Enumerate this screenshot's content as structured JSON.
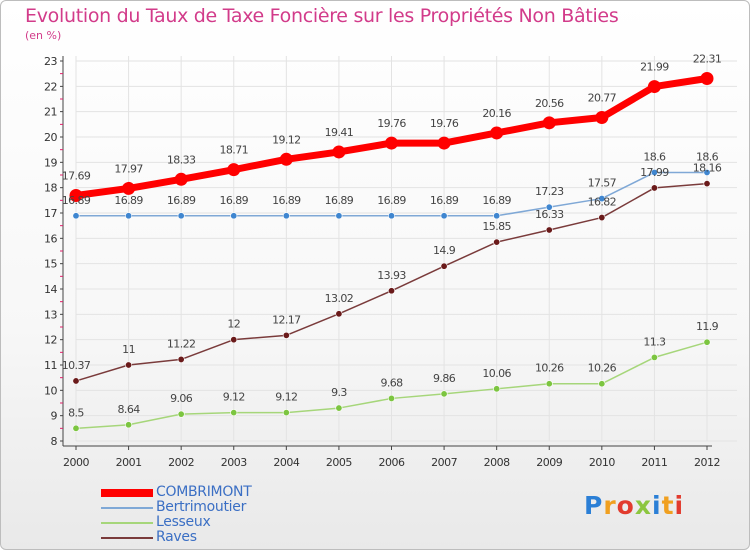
{
  "title": "Evolution du Taux de Taxe Foncière sur les Propriétés Non Bâties",
  "unit_label": "(en %)",
  "logo": {
    "text": "Proxiti",
    "letters": [
      "P",
      "r",
      "o",
      "x",
      "i",
      "t",
      "i"
    ],
    "colors": [
      "#2b7fd6",
      "#f0a020",
      "#e23b2e",
      "#8cc63f",
      "#2b7fd6",
      "#f0a020",
      "#e23b2e"
    ]
  },
  "colors": {
    "title": "#d23b8a",
    "axis": "#444444",
    "grid": "#e3e3e3",
    "tick_marks": "#e0206a",
    "legend_text": "#3b6fc4"
  },
  "chart_data": {
    "type": "line",
    "x": [
      "2000",
      "2001",
      "2002",
      "2003",
      "2004",
      "2005",
      "2006",
      "2007",
      "2008",
      "2009",
      "2010",
      "2011",
      "2012"
    ],
    "ylim": [
      8,
      23
    ],
    "yticks": [
      8,
      9,
      10,
      11,
      12,
      13,
      14,
      15,
      16,
      17,
      18,
      19,
      20,
      21,
      22,
      23
    ],
    "grid": true,
    "legend_position": "bottom-left",
    "xlabel": "",
    "ylabel": "",
    "series": [
      {
        "name": "COMBRIMONT",
        "color": "#ff0000",
        "marker_color": "#ff0000",
        "width": 7,
        "values": [
          17.69,
          17.97,
          18.33,
          18.71,
          19.12,
          19.41,
          19.76,
          19.76,
          20.16,
          20.56,
          20.77,
          21.99,
          22.31
        ],
        "labels": [
          "17.69",
          "17.97",
          "18.33",
          "18.71",
          "19.12",
          "19.41",
          "19.76",
          "19.76",
          "20.16",
          "20.56",
          "20.77",
          "21.99",
          "22.31"
        ]
      },
      {
        "name": "Bertrimoutier",
        "color": "#7fa8d6",
        "marker_color": "#3f86d0",
        "width": 1.5,
        "values": [
          16.89,
          16.89,
          16.89,
          16.89,
          16.89,
          16.89,
          16.89,
          16.89,
          16.89,
          17.23,
          17.57,
          18.6,
          18.6
        ],
        "labels": [
          "16.89",
          "16.89",
          "16.89",
          "16.89",
          "16.89",
          "16.89",
          "16.89",
          "16.89",
          "16.89",
          "17.23",
          "17.57",
          "18.6",
          "18.6"
        ]
      },
      {
        "name": "Lesseux",
        "color": "#a6d67a",
        "marker_color": "#7cc540",
        "width": 1.5,
        "values": [
          8.5,
          8.64,
          9.06,
          9.12,
          9.12,
          9.3,
          9.68,
          9.86,
          10.06,
          10.26,
          10.26,
          11.3,
          11.9
        ],
        "labels": [
          "8.5",
          "8.64",
          "9.06",
          "9.12",
          "9.12",
          "9.3",
          "9.68",
          "9.86",
          "10.06",
          "10.26",
          "10.26",
          "11.3",
          "11.9"
        ]
      },
      {
        "name": "Raves",
        "color": "#7a3b3b",
        "marker_color": "#6a1a1a",
        "width": 1.5,
        "values": [
          10.37,
          11,
          11.22,
          12,
          12.17,
          13.02,
          13.93,
          14.9,
          15.85,
          16.33,
          16.82,
          17.99,
          18.16
        ],
        "labels": [
          "10.37",
          "11",
          "11.22",
          "12",
          "12.17",
          "13.02",
          "13.93",
          "14.9",
          "15.85",
          "16.33",
          "16.82",
          "17.99",
          "18.16"
        ]
      }
    ]
  }
}
